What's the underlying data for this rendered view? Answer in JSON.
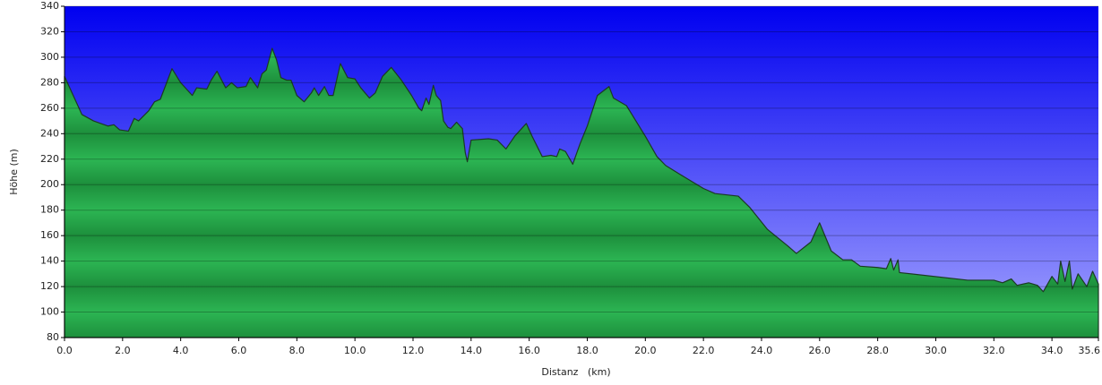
{
  "chart_data": {
    "type": "area",
    "x_label": "Distanz   (km)",
    "y_label": "Höhe (m)",
    "color": "#27a84a",
    "line_color": "#1c3a24",
    "xlim": [
      0,
      35.6
    ],
    "ylim": [
      80,
      340
    ],
    "xticks": [
      {
        "value": 0,
        "label": "0.0"
      },
      {
        "value": 2,
        "label": "2.0"
      },
      {
        "value": 4,
        "label": "4.0"
      },
      {
        "value": 6,
        "label": "6.0"
      },
      {
        "value": 8,
        "label": "8.0"
      },
      {
        "value": 10,
        "label": "10.0"
      },
      {
        "value": 12,
        "label": "12.0"
      },
      {
        "value": 14,
        "label": "14.0"
      },
      {
        "value": 16,
        "label": "16.0"
      },
      {
        "value": 18,
        "label": "18.0"
      },
      {
        "value": 20,
        "label": "20.0"
      },
      {
        "value": 22,
        "label": "22.0"
      },
      {
        "value": 24,
        "label": "24.0"
      },
      {
        "value": 26,
        "label": "26.0"
      },
      {
        "value": 28,
        "label": "28.0"
      },
      {
        "value": 30,
        "label": "30.0"
      },
      {
        "value": 32,
        "label": "32.0"
      },
      {
        "value": 34,
        "label": "34.0"
      },
      {
        "value": 35.6,
        "label": "35.6"
      }
    ],
    "yticks": [
      80,
      100,
      120,
      140,
      160,
      180,
      200,
      220,
      240,
      260,
      280,
      300,
      320,
      340
    ],
    "grid": true,
    "x": [
      0.0,
      0.2,
      0.4,
      0.6,
      1.0,
      1.5,
      1.7,
      1.9,
      2.2,
      2.4,
      2.55,
      2.9,
      3.1,
      3.3,
      3.7,
      4.0,
      4.4,
      4.55,
      4.9,
      5.05,
      5.25,
      5.55,
      5.75,
      5.95,
      6.25,
      6.4,
      6.65,
      6.8,
      6.95,
      7.15,
      7.3,
      7.45,
      7.65,
      7.8,
      8.0,
      8.25,
      8.5,
      8.6,
      8.75,
      8.95,
      9.1,
      9.25,
      9.5,
      9.75,
      10.0,
      10.2,
      10.5,
      10.7,
      10.95,
      11.25,
      11.6,
      11.95,
      12.2,
      12.3,
      12.45,
      12.55,
      12.7,
      12.8,
      12.95,
      13.05,
      13.2,
      13.3,
      13.5,
      13.7,
      13.8,
      13.87,
      14.0,
      14.6,
      14.9,
      15.2,
      15.5,
      15.9,
      16.1,
      16.45,
      16.75,
      16.95,
      17.05,
      17.25,
      17.5,
      17.75,
      18.0,
      18.35,
      18.75,
      18.9,
      19.35,
      20.0,
      20.4,
      20.7,
      21.2,
      22.0,
      22.4,
      23.2,
      23.6,
      24.2,
      24.9,
      25.2,
      25.7,
      26.0,
      26.4,
      26.8,
      27.1,
      27.4,
      28.0,
      28.3,
      28.45,
      28.55,
      28.7,
      28.75,
      31.1,
      32.0,
      32.3,
      32.6,
      32.8,
      33.2,
      33.5,
      33.7,
      34.0,
      34.2,
      34.3,
      34.45,
      34.6,
      34.7,
      34.9,
      35.2,
      35.4,
      35.6
    ],
    "values": [
      285,
      275,
      265,
      255,
      250,
      246,
      247,
      243,
      242,
      252,
      250,
      258,
      265,
      267,
      291,
      280,
      270,
      276,
      275,
      282,
      289,
      276,
      280,
      276,
      277,
      284,
      276,
      287,
      290,
      307,
      298,
      284,
      282,
      282,
      270,
      265,
      272,
      276,
      270,
      277,
      270,
      270,
      295,
      284,
      283,
      276,
      268,
      272,
      285,
      292,
      282,
      270,
      260,
      258,
      268,
      263,
      278,
      270,
      266,
      250,
      245,
      244,
      249,
      244,
      225,
      218,
      235,
      236,
      235,
      228,
      238,
      248,
      238,
      222,
      223,
      222,
      228,
      226,
      216,
      232,
      246,
      270,
      277,
      268,
      262,
      238,
      222,
      215,
      208,
      197,
      193,
      191,
      182,
      165,
      152,
      146,
      155,
      170,
      148,
      141,
      141,
      136,
      135,
      134,
      142,
      133,
      141,
      131,
      125,
      125,
      123,
      126,
      121,
      123,
      121,
      116,
      128,
      122,
      140,
      124,
      140,
      118,
      130,
      120,
      132,
      122
    ]
  }
}
